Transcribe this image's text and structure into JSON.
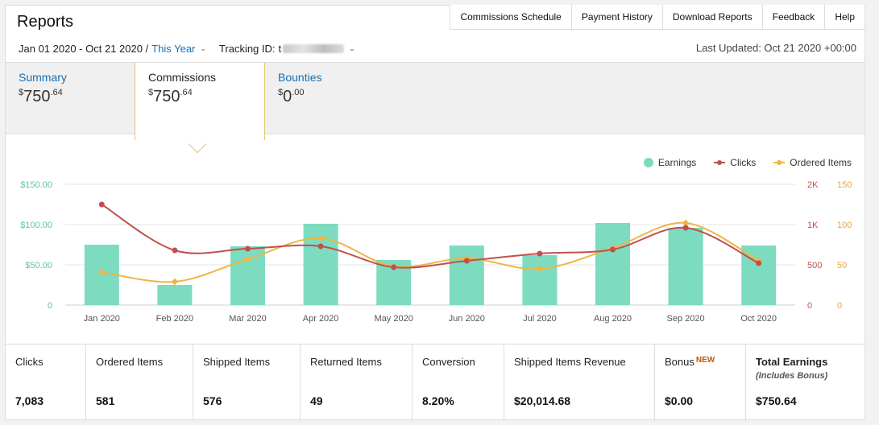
{
  "header": {
    "title": "Reports",
    "nav": [
      "Commissions Schedule",
      "Payment History",
      "Download Reports",
      "Feedback",
      "Help"
    ],
    "date_range": "Jan 01 2020 - Oct 21 2020 /",
    "date_preset": "This Year",
    "tracking_label": "Tracking ID:",
    "tracking_prefix": "t",
    "last_updated": "Last Updated: Oct 21 2020 +00:00"
  },
  "tabs": {
    "summary": {
      "name": "Summary",
      "currency": "$",
      "whole": "750",
      "cents": ".64"
    },
    "commissions": {
      "name": "Commissions",
      "currency": "$",
      "whole": "750",
      "cents": ".64"
    },
    "bounties": {
      "name": "Bounties",
      "currency": "$",
      "whole": "0",
      "cents": ".00"
    }
  },
  "legend": {
    "earnings": "Earnings",
    "clicks": "Clicks",
    "ordered_items": "Ordered Items"
  },
  "colors": {
    "earnings": "#7ddbbf",
    "clicks": "#c0504d",
    "ordered_items": "#eeb545",
    "earnings_axis": "#5cc5a4",
    "clicks_axis": "#c0504d",
    "ordered_axis": "#e4a935"
  },
  "chart_data": {
    "type": "bar",
    "categories": [
      "Jan 2020",
      "Feb 2020",
      "Mar 2020",
      "Apr 2020",
      "May 2020",
      "Jun 2020",
      "Jul 2020",
      "Aug 2020",
      "Sep 2020",
      "Oct 2020"
    ],
    "series": [
      {
        "name": "Earnings",
        "type": "bar",
        "axis": "left",
        "values": [
          75,
          25,
          73,
          101,
          56,
          74,
          62,
          102,
          96,
          74
        ]
      },
      {
        "name": "Clicks",
        "type": "line",
        "axis": "right1",
        "values": [
          1250,
          680,
          700,
          730,
          470,
          550,
          640,
          690,
          960,
          520
        ]
      },
      {
        "name": "Ordered Items",
        "type": "line",
        "axis": "right2",
        "values": [
          41,
          29,
          57,
          83,
          48,
          58,
          45,
          71,
          102,
          55
        ]
      }
    ],
    "left_axis": {
      "ticks": [
        "0",
        "$50.00",
        "$100.00",
        "$150.00"
      ],
      "ylim": [
        0,
        150
      ]
    },
    "right1_axis": {
      "ticks": [
        "0",
        "500",
        "1K",
        "2K"
      ],
      "ylim": [
        0,
        1500
      ]
    },
    "right2_axis": {
      "ticks": [
        "0",
        "50",
        "100",
        "150"
      ],
      "ylim": [
        0,
        150
      ]
    }
  },
  "stats": [
    {
      "label": "Clicks",
      "value": "7,083"
    },
    {
      "label": "Ordered Items",
      "value": "581"
    },
    {
      "label": "Shipped Items",
      "value": "576"
    },
    {
      "label": "Returned Items",
      "value": "49"
    },
    {
      "label": "Conversion",
      "value": "8.20%"
    },
    {
      "label": "Shipped Items Revenue",
      "value": "$20,014.68"
    },
    {
      "label": "Bonus",
      "badge": "NEW",
      "value": "$0.00"
    },
    {
      "label": "Total Earnings",
      "sub": "(Includes Bonus)",
      "value": "$750.64"
    }
  ]
}
